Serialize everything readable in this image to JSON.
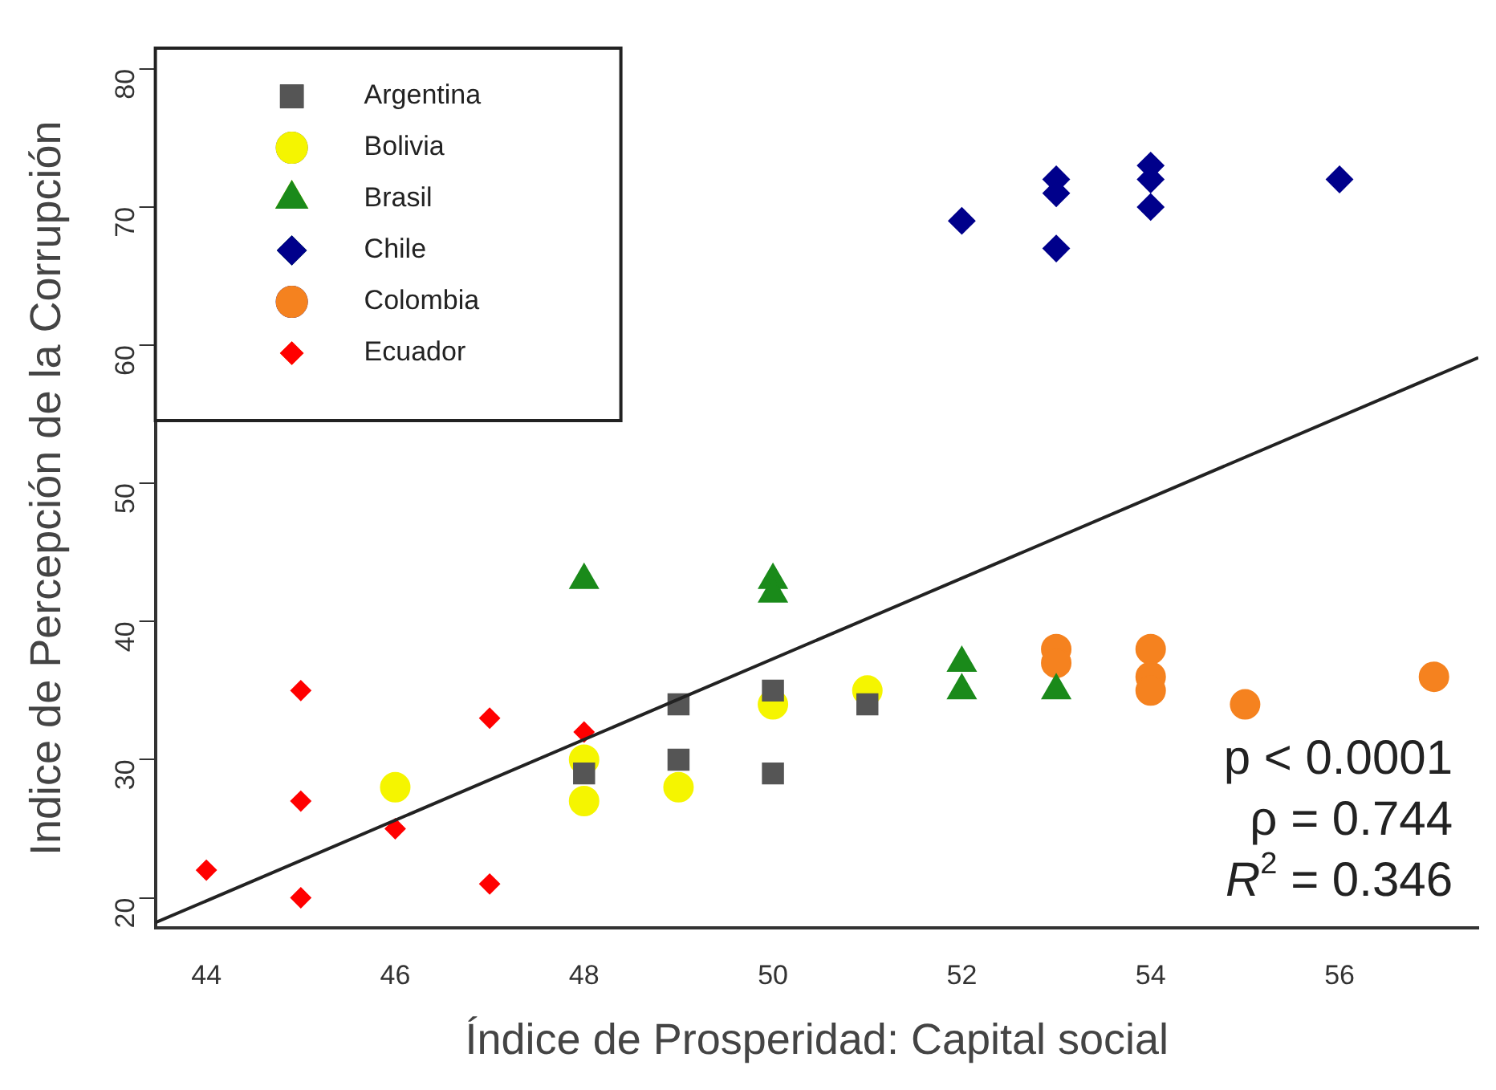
{
  "chart_data": {
    "type": "scatter",
    "xlabel": "Índice de Prosperidad: Capital social",
    "ylabel": "Indice de Percepción de la Corrupción",
    "xlim": [
      43.46,
      57.47
    ],
    "xticks": [
      44,
      46,
      48,
      50,
      52,
      54,
      56
    ],
    "ylim": [
      17.8,
      81.5
    ],
    "yticks": [
      20,
      30,
      40,
      50,
      60,
      70,
      80
    ],
    "grid": false,
    "legend": "top left",
    "series": [
      {
        "name": "Argentina",
        "color": "#555555",
        "marker": "square",
        "x": [
          48,
          49,
          49,
          50,
          50,
          51
        ],
        "values": [
          29,
          34,
          30,
          35,
          29,
          34
        ]
      },
      {
        "name": "Bolivia",
        "color": "#f5f500",
        "marker": "circle",
        "x": [
          46,
          48,
          48,
          49,
          50,
          51
        ],
        "values": [
          28,
          30,
          27,
          28,
          34,
          35
        ]
      },
      {
        "name": "Brasil",
        "color": "#1a8a1a",
        "marker": "triangle",
        "x": [
          48,
          50,
          50,
          52,
          52,
          53
        ],
        "values": [
          43,
          43,
          42,
          37,
          35,
          35
        ]
      },
      {
        "name": "Chile",
        "color": "#00008b",
        "marker": "diamond",
        "x": [
          52,
          53,
          53,
          53,
          54,
          54,
          54,
          56
        ],
        "values": [
          69,
          72,
          71,
          67,
          73,
          72,
          70,
          72
        ]
      },
      {
        "name": "Colombia",
        "color": "#f5821f",
        "marker": "circle",
        "x": [
          53,
          53,
          54,
          54,
          54,
          55,
          57
        ],
        "values": [
          38,
          37,
          38,
          36,
          35,
          34,
          36
        ]
      },
      {
        "name": "Ecuador",
        "color": "#ff0000",
        "marker": "diamond",
        "x": [
          44,
          45,
          45,
          45,
          46,
          47,
          47,
          48
        ],
        "values": [
          22,
          35,
          27,
          20,
          25,
          33,
          21,
          32
        ]
      },
      {
        "type": "line",
        "color": "#222222",
        "marker": "none",
        "x": [
          43.46,
          57.47
        ],
        "values": [
          18.2,
          59.1
        ]
      }
    ],
    "annotations": [
      "p < 0.0001",
      "ρ = 0.744",
      "R$^{2}$ = 0.346"
    ]
  }
}
